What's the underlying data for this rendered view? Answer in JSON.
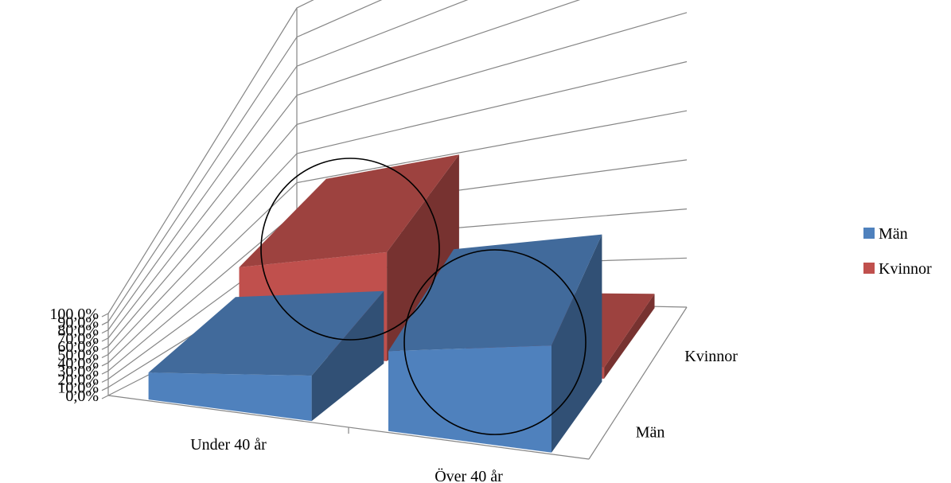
{
  "chart_data": {
    "type": "bar",
    "style": "3d-column",
    "categories": [
      "Under 40 år",
      "Över 40 år"
    ],
    "depth_categories": [
      "Män",
      "Kvinnor"
    ],
    "series": [
      {
        "name": "Män",
        "color": "#4F81BD",
        "values": [
          27,
          40
        ]
      },
      {
        "name": "Kvinnor",
        "color": "#C0504D",
        "values": [
          40,
          3
        ]
      }
    ],
    "yticks": [
      "0,0%",
      "10,0%",
      "20,0%",
      "30,0%",
      "40,0%",
      "50,0%",
      "60,0%",
      "70,0%",
      "80,0%",
      "90,0%",
      "100,0%"
    ],
    "ylim": [
      0,
      100
    ],
    "grid": true,
    "legend_position": "right",
    "annotations": [
      {
        "type": "circle",
        "around": "Under 40 år / Kvinnor"
      },
      {
        "type": "circle",
        "around": "Över 40 år / Män"
      }
    ]
  }
}
